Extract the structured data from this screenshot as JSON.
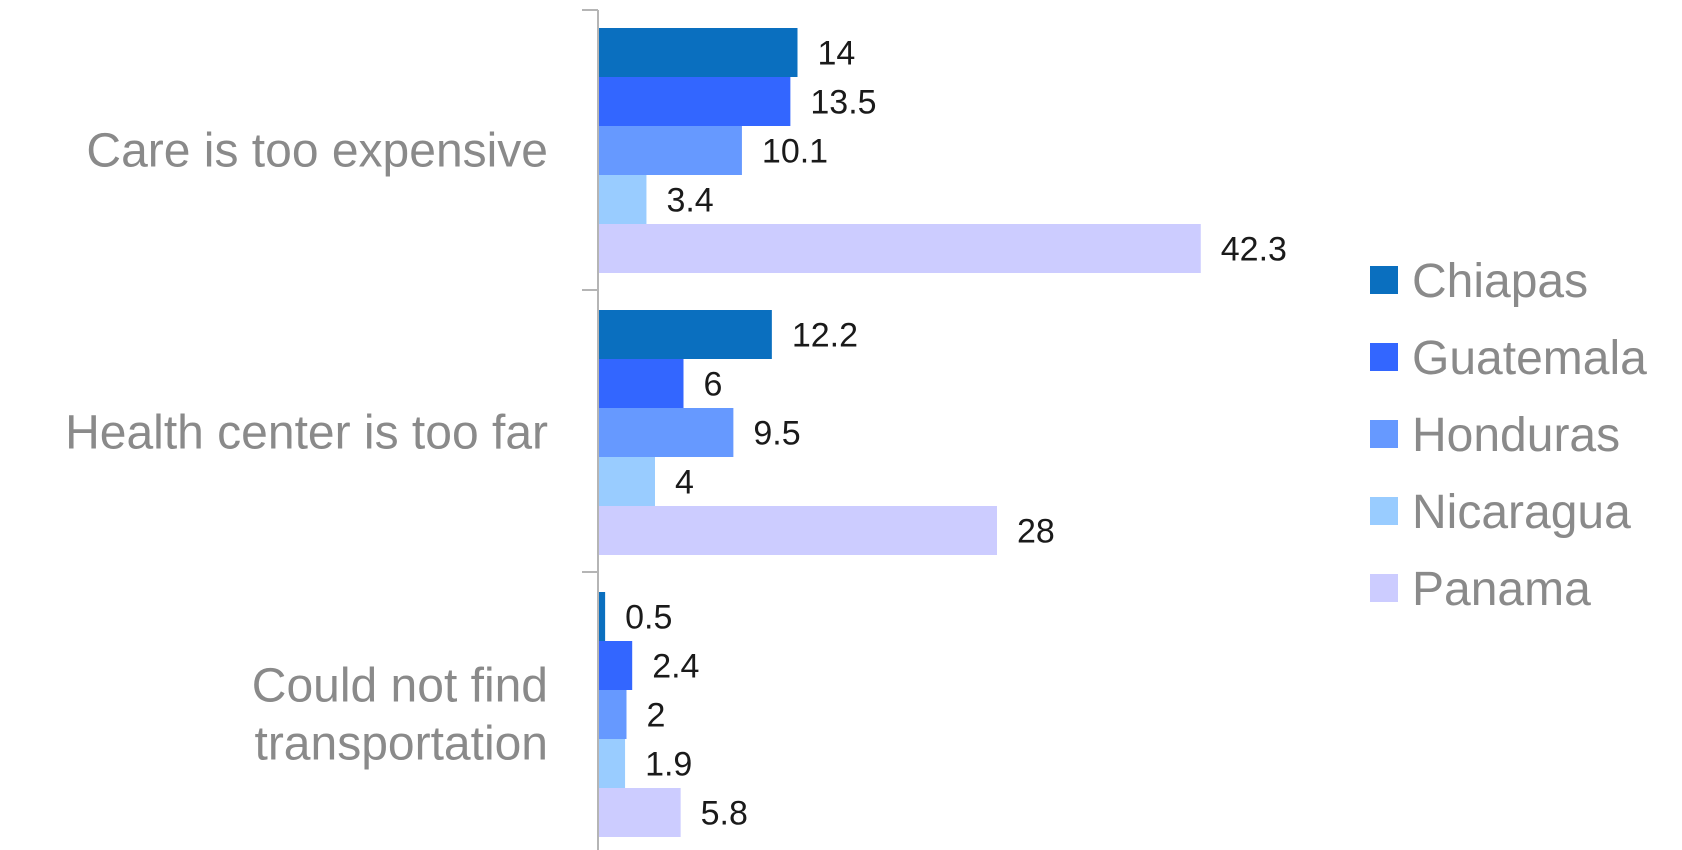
{
  "chart_data": {
    "type": "bar",
    "orientation": "horizontal",
    "categories": [
      [
        "Care is too expensive"
      ],
      [
        "Health center is too far"
      ],
      [
        "Could not find",
        "transportation"
      ]
    ],
    "series": [
      {
        "name": "Chiapas",
        "color": "#0a6fbf",
        "values": [
          14,
          12.2,
          0.5
        ]
      },
      {
        "name": "Guatemala",
        "color": "#3366ff",
        "values": [
          13.5,
          6,
          2.4
        ]
      },
      {
        "name": "Honduras",
        "color": "#6699ff",
        "values": [
          10.1,
          9.5,
          2
        ]
      },
      {
        "name": "Nicaragua",
        "color": "#99ccff",
        "values": [
          3.4,
          4,
          1.9
        ]
      },
      {
        "name": "Panama",
        "color": "#ccccff",
        "values": [
          42.3,
          28,
          5.8
        ]
      }
    ],
    "xlim": [
      0,
      45
    ],
    "grid": false,
    "legend_position": "right"
  }
}
